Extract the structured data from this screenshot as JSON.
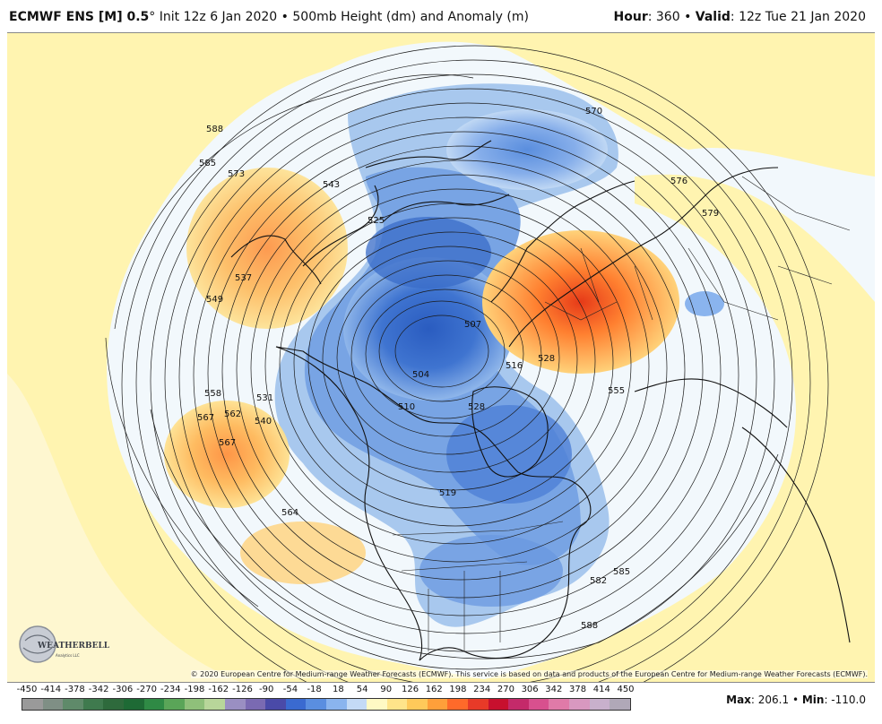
{
  "header": {
    "model": "ECMWF ENS [M] 0.5",
    "degree": "°",
    "init": " Init 12z 6 Jan 2020",
    "sep": " • ",
    "product": "500mb Height (dm) and Anomaly (m)",
    "hour_label": "Hour",
    "hour_value": ": 360 • ",
    "valid_label": "Valid",
    "valid_value": ": 12z Tue 21 Jan 2020"
  },
  "footer": {
    "copyright": "© 2020 European Centre for Medium-range Weather Forecasts (ECMWF). This service is based on data and products of the European Centre for Medium-range Weather Forecasts (ECMWF).",
    "max_label": "Max",
    "max_value": ": 206.1 • ",
    "min_label": "Min",
    "min_value": ": -110.0",
    "logo_text": "WEATHERBELL",
    "logo_sub": "Analytics LLC"
  },
  "colorbar": {
    "labels": [
      "-450",
      "-414",
      "-378",
      "-342",
      "-306",
      "-270",
      "-234",
      "-198",
      "-162",
      "-126",
      "-90",
      "-54",
      "-18",
      "18",
      "54",
      "90",
      "126",
      "162",
      "198",
      "234",
      "270",
      "306",
      "342",
      "378",
      "414",
      "450"
    ],
    "colors": [
      "#9a9a9a",
      "#7f8f85",
      "#5f8a6a",
      "#3f7a4e",
      "#2e6a3c",
      "#1e6a35",
      "#2f8a45",
      "#5aa558",
      "#8fc07a",
      "#b8d69a",
      "#9a8fc2",
      "#7a6ab2",
      "#4a4aa8",
      "#3a6ad0",
      "#5a8ee0",
      "#8ab4ee",
      "#c4daf6",
      "#fff9c4",
      "#ffe48a",
      "#ffc95a",
      "#ff9f3a",
      "#ff6a2a",
      "#e83a28",
      "#c8102e",
      "#c42a6a",
      "#d8508e",
      "#e07aa8",
      "#d898c0",
      "#c8b0cc",
      "#b0a8b8"
    ]
  },
  "contour_labels": [
    "588",
    "585",
    "573",
    "549",
    "537",
    "543",
    "525",
    "570",
    "576",
    "579",
    "558",
    "567",
    "562",
    "567",
    "531",
    "540",
    "504",
    "510",
    "582",
    "585",
    "588",
    "564",
    "519",
    "528",
    "516",
    "507",
    "555",
    "528"
  ],
  "colors": {
    "ocean_yellow": "#fff4b0",
    "ocean_pale": "#f2f8fc",
    "blue_light": "#a8c8ee",
    "blue_mid": "#5e92dc",
    "blue_dark": "#2f63c8",
    "orange_light": "#ffcf70",
    "orange_mid": "#ff9a3a",
    "red": "#e8441e"
  }
}
